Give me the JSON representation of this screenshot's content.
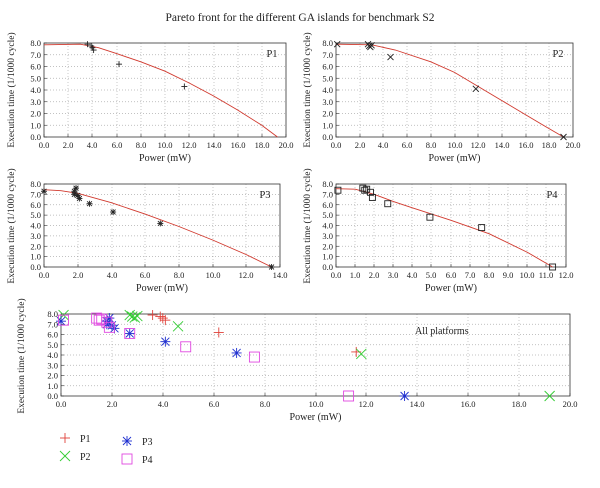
{
  "figure_title": "Pareto front for the different GA islands for benchmark S2",
  "colors": {
    "curve": "#d13a2f",
    "P1": "#e0413a",
    "P2": "#33cc33",
    "P3": "#1f2fd0",
    "P4": "#e048e0",
    "mono": "#222222"
  },
  "chart_data": [
    {
      "type": "scatter",
      "label": "P1",
      "xlabel": "Power (mW)",
      "ylabel": "Execution time (1/1000 cycle)",
      "xlim": [
        0,
        20
      ],
      "ylim": [
        0,
        8
      ],
      "xticks": [
        "0.0",
        "2.0",
        "4.0",
        "6.0",
        "8.0",
        "10.0",
        "12.0",
        "14.0",
        "16.0",
        "18.0",
        "20.0"
      ],
      "yticks": [
        "0.0",
        "1.0",
        "2.0",
        "3.0",
        "4.0",
        "5.0",
        "6.0",
        "7.0",
        "8.0"
      ],
      "grid": true,
      "marker": "plus",
      "points": [
        [
          3.6,
          7.9
        ],
        [
          3.9,
          7.75
        ],
        [
          4.0,
          7.6
        ],
        [
          4.1,
          7.4
        ],
        [
          6.2,
          6.2
        ],
        [
          11.6,
          4.3
        ]
      ],
      "curve": [
        [
          0,
          7.85
        ],
        [
          3.0,
          7.9
        ],
        [
          4.5,
          7.6
        ],
        [
          6,
          7.1
        ],
        [
          8,
          6.4
        ],
        [
          10,
          5.6
        ],
        [
          12,
          4.6
        ],
        [
          14,
          3.5
        ],
        [
          16,
          2.3
        ],
        [
          18,
          1.0
        ],
        [
          19.3,
          0.0
        ]
      ]
    },
    {
      "type": "scatter",
      "label": "P2",
      "xlabel": "Power (mW)",
      "ylabel": "Execution time (1/1000 cycle)",
      "xlim": [
        0,
        20
      ],
      "ylim": [
        0,
        8
      ],
      "xticks": [
        "0.0",
        "2.0",
        "4.0",
        "6.0",
        "8.0",
        "10.0",
        "12.0",
        "14.0",
        "16.0",
        "18.0",
        "20.0"
      ],
      "yticks": [
        "0.0",
        "1.0",
        "2.0",
        "3.0",
        "4.0",
        "5.0",
        "6.0",
        "7.0",
        "8.0"
      ],
      "grid": true,
      "marker": "x",
      "points": [
        [
          0.1,
          7.9
        ],
        [
          2.7,
          7.9
        ],
        [
          2.8,
          7.75
        ],
        [
          2.9,
          7.65
        ],
        [
          3.0,
          7.8
        ],
        [
          4.6,
          6.8
        ],
        [
          11.8,
          4.1
        ],
        [
          19.2,
          0.0
        ]
      ],
      "curve": [
        [
          0,
          7.9
        ],
        [
          3,
          7.85
        ],
        [
          5,
          7.4
        ],
        [
          8,
          6.4
        ],
        [
          10,
          5.5
        ],
        [
          12,
          4.3
        ],
        [
          14,
          3.1
        ],
        [
          16,
          1.9
        ],
        [
          18,
          0.7
        ],
        [
          19.2,
          0.0
        ]
      ]
    },
    {
      "type": "scatter",
      "label": "P3",
      "xlabel": "Power (mW)",
      "ylabel": "Execution time (1/1000 cycle)",
      "xlim": [
        0,
        14
      ],
      "ylim": [
        0,
        8
      ],
      "xticks": [
        "0.0",
        "2.0",
        "4.0",
        "6.0",
        "8.0",
        "10.0",
        "12.0",
        "14.0"
      ],
      "yticks": [
        "0.0",
        "1.0",
        "2.0",
        "3.0",
        "4.0",
        "5.0",
        "6.0",
        "7.0",
        "8.0"
      ],
      "grid": true,
      "marker": "star",
      "points": [
        [
          0.0,
          7.3
        ],
        [
          1.8,
          7.3
        ],
        [
          1.8,
          7.0
        ],
        [
          1.9,
          7.6
        ],
        [
          2.0,
          6.9
        ],
        [
          2.1,
          6.6
        ],
        [
          2.7,
          6.1
        ],
        [
          4.1,
          5.3
        ],
        [
          6.9,
          4.2
        ],
        [
          13.5,
          0.0
        ]
      ],
      "curve": [
        [
          0,
          7.45
        ],
        [
          1,
          7.35
        ],
        [
          2,
          7.1
        ],
        [
          4,
          6.2
        ],
        [
          6,
          5.1
        ],
        [
          8,
          3.9
        ],
        [
          10,
          2.6
        ],
        [
          12,
          1.2
        ],
        [
          13.5,
          0.0
        ]
      ]
    },
    {
      "type": "scatter",
      "label": "P4",
      "xlabel": "Power (mW)",
      "ylabel": "Execution time (1/1000 cycle)",
      "xlim": [
        0,
        12
      ],
      "ylim": [
        0,
        8
      ],
      "xticks": [
        "0.0",
        "1.0",
        "2.0",
        "3.0",
        "4.0",
        "5.0",
        "6.0",
        "7.0",
        "8.0",
        "9.0",
        "10.0",
        "11.0",
        "12.0"
      ],
      "yticks": [
        "0.0",
        "1.0",
        "2.0",
        "3.0",
        "4.0",
        "5.0",
        "6.0",
        "7.0",
        "8.0"
      ],
      "grid": true,
      "marker": "square",
      "points": [
        [
          0.1,
          7.4
        ],
        [
          1.4,
          7.6
        ],
        [
          1.5,
          7.4
        ],
        [
          1.6,
          7.5
        ],
        [
          1.8,
          7.2
        ],
        [
          1.9,
          6.7
        ],
        [
          2.7,
          6.1
        ],
        [
          4.9,
          4.8
        ],
        [
          7.6,
          3.8
        ],
        [
          11.3,
          0.0
        ]
      ],
      "curve": [
        [
          0,
          7.55
        ],
        [
          1,
          7.5
        ],
        [
          2,
          7.0
        ],
        [
          3,
          6.3
        ],
        [
          4,
          5.7
        ],
        [
          6,
          4.5
        ],
        [
          8,
          3.2
        ],
        [
          10,
          1.4
        ],
        [
          11.3,
          0.0
        ]
      ]
    },
    {
      "type": "scatter",
      "label": "All platforms",
      "xlabel": "Power (mW)",
      "ylabel": "Execution time (1/1000 cycle)",
      "xlim": [
        0,
        20
      ],
      "ylim": [
        0,
        8
      ],
      "xticks": [
        "0.0",
        "2.0",
        "4.0",
        "6.0",
        "8.0",
        "10.0",
        "12.0",
        "14.0",
        "16.0",
        "18.0",
        "20.0"
      ],
      "yticks": [
        "0.0",
        "1.0",
        "2.0",
        "3.0",
        "4.0",
        "5.0",
        "6.0",
        "7.0",
        "8.0"
      ],
      "grid": true,
      "legend": [
        "P1",
        "P2",
        "P3",
        "P4"
      ],
      "series": [
        {
          "name": "P1",
          "marker": "plus",
          "points": [
            [
              3.6,
              7.9
            ],
            [
              3.9,
              7.75
            ],
            [
              4.0,
              7.6
            ],
            [
              4.1,
              7.4
            ],
            [
              6.2,
              6.2
            ],
            [
              11.6,
              4.3
            ]
          ]
        },
        {
          "name": "P2",
          "marker": "x",
          "points": [
            [
              0.1,
              7.9
            ],
            [
              2.7,
              7.9
            ],
            [
              2.8,
              7.75
            ],
            [
              2.9,
              7.65
            ],
            [
              3.0,
              7.8
            ],
            [
              4.6,
              6.8
            ],
            [
              11.8,
              4.1
            ],
            [
              19.2,
              0.0
            ]
          ]
        },
        {
          "name": "P3",
          "marker": "star",
          "points": [
            [
              0.0,
              7.3
            ],
            [
              1.8,
              7.3
            ],
            [
              1.8,
              7.0
            ],
            [
              1.9,
              7.6
            ],
            [
              2.0,
              6.9
            ],
            [
              2.1,
              6.6
            ],
            [
              2.7,
              6.1
            ],
            [
              4.1,
              5.3
            ],
            [
              6.9,
              4.2
            ],
            [
              13.5,
              0.0
            ]
          ]
        },
        {
          "name": "P4",
          "marker": "square",
          "points": [
            [
              0.1,
              7.4
            ],
            [
              1.4,
              7.6
            ],
            [
              1.5,
              7.4
            ],
            [
              1.6,
              7.5
            ],
            [
              1.8,
              7.2
            ],
            [
              1.9,
              6.7
            ],
            [
              2.7,
              6.1
            ],
            [
              4.9,
              4.8
            ],
            [
              7.6,
              3.8
            ],
            [
              11.3,
              0.0
            ]
          ]
        }
      ]
    }
  ]
}
